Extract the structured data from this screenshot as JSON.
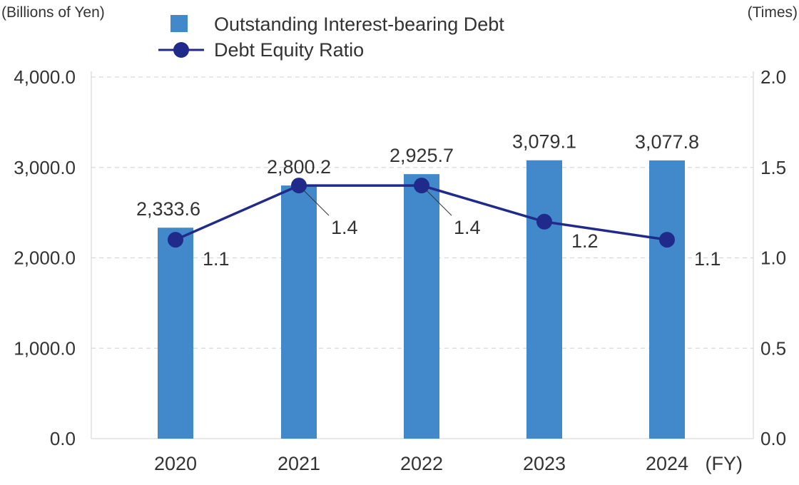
{
  "chart_data": {
    "type": "bar",
    "categories": [
      "2020",
      "2021",
      "2022",
      "2023",
      "2024"
    ],
    "x_suffix": "(FY)",
    "series": [
      {
        "name": "Outstanding Interest-bearing Debt",
        "kind": "bar",
        "axis": "left",
        "color": "#4189cb",
        "values": [
          2333.6,
          2800.2,
          2925.7,
          3079.1,
          3077.8
        ],
        "labels": [
          "2,333.6",
          "2,800.2",
          "2,925.7",
          "3,079.1",
          "3,077.8"
        ]
      },
      {
        "name": "Debt Equity Ratio",
        "kind": "line",
        "axis": "right",
        "color": "#1f2a8a",
        "values": [
          1.1,
          1.4,
          1.4,
          1.2,
          1.1
        ],
        "labels": [
          "1.1",
          "1.4",
          "1.4",
          "1.2",
          "1.1"
        ]
      }
    ],
    "y_left": {
      "unit": "(Billions of Yen)",
      "range": [
        0,
        4000
      ],
      "ticks": [
        0,
        1000,
        2000,
        3000,
        4000
      ],
      "tick_labels": [
        "0.0",
        "1,000.0",
        "2,000.0",
        "3,000.0",
        "4,000.0"
      ]
    },
    "y_right": {
      "unit": "(Times)",
      "range": [
        0,
        2.0
      ],
      "ticks": [
        0,
        0.5,
        1.0,
        1.5,
        2.0
      ],
      "tick_labels": [
        "0.0",
        "0.5",
        "1.0",
        "1.5",
        "2.0"
      ]
    },
    "grid": true,
    "legend_position": "top-left"
  }
}
